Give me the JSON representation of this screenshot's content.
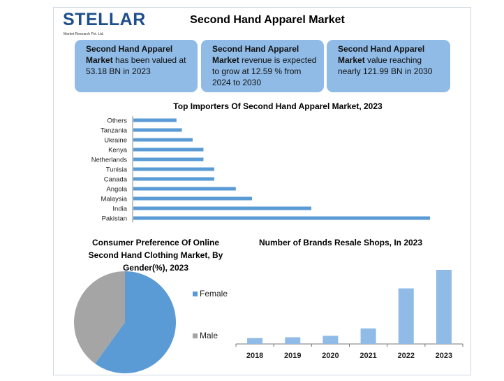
{
  "header": {
    "title": "Second Hand Apparel Market",
    "logo_text": "STELLAR",
    "logo_sub": "Market Research Pvt. Ltd."
  },
  "cards": [
    {
      "bold": "Second Hand Apparel Market",
      "text": " has been valued at 53.18 BN in 2023"
    },
    {
      "bold": "Second Hand Apparel Market",
      "text": " revenue is expected to grow at 12.59 % from 2024 to 2030"
    },
    {
      "bold": "Second Hand Apparel Market",
      "text": " value reaching nearly 121.99 BN in 2030"
    }
  ],
  "colors": {
    "bar": "#5b9bd5",
    "bar_light": "#8fbbe6",
    "male": "#a5a5a5",
    "card": "#8fbbe6"
  },
  "chart_data": [
    {
      "type": "bar",
      "orientation": "horizontal",
      "title": "Top Importers Of Second Hand Apparel Market, 2023",
      "categories": [
        "Others",
        "Tanzania",
        "Ukraine",
        "Kenya",
        "Netherlands",
        "Tunisia",
        "Canada",
        "Angola",
        "Malaysia",
        "India",
        "Pakistan"
      ],
      "values": [
        16,
        18,
        22,
        26,
        26,
        30,
        30,
        38,
        44,
        66,
        110
      ],
      "xlim": [
        0,
        110
      ],
      "grid": false
    },
    {
      "type": "pie",
      "title": "Consumer Preference Of Online Second Hand Clothing Market, By Gender(%), 2023",
      "labels": [
        "Female",
        "Male"
      ],
      "values": [
        60,
        40
      ],
      "legend": "right"
    },
    {
      "type": "bar",
      "title": "Number of Brands Resale Shops, In 2023",
      "categories": [
        "2018",
        "2019",
        "2020",
        "2021",
        "2022",
        "2023"
      ],
      "values": [
        8,
        9,
        11,
        21,
        75,
        100
      ],
      "ylim": [
        0,
        100
      ],
      "grid": false
    }
  ]
}
